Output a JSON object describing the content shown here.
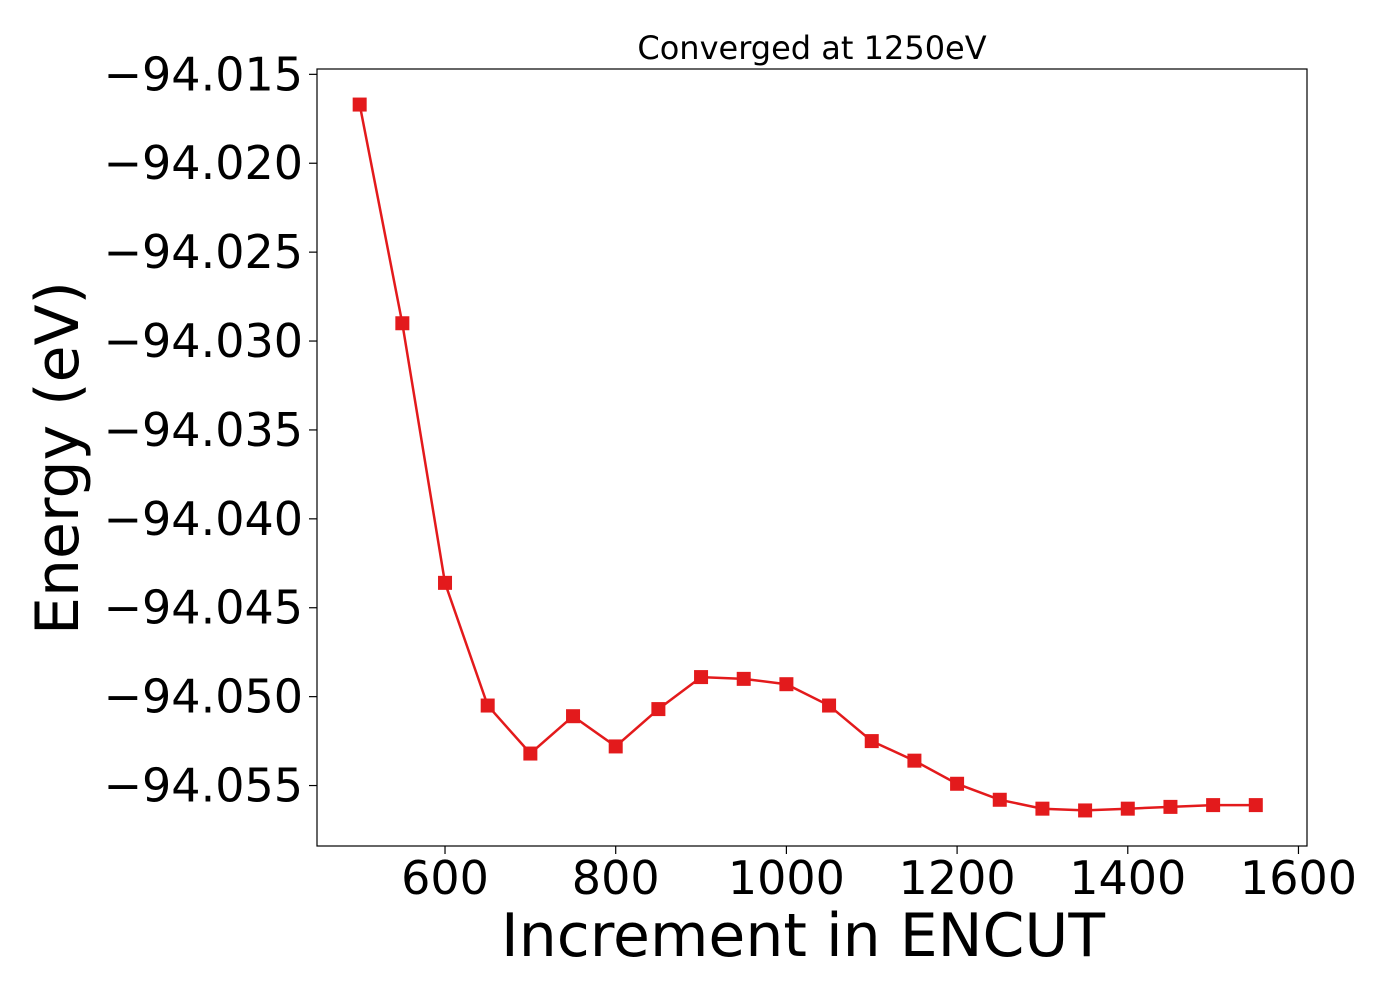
{
  "chart_data": {
    "type": "line",
    "title": "Converged at 1250eV",
    "xlabel": "Increment in ENCUT",
    "ylabel": "Energy (eV)",
    "xlim": [
      450,
      1610
    ],
    "ylim": [
      -94.0584,
      -94.0147
    ],
    "xticks": [
      600,
      800,
      1000,
      1200,
      1400,
      1600
    ],
    "xtick_labels": [
      "600",
      "800",
      "1000",
      "1200",
      "1400",
      "1600"
    ],
    "yticks": [
      -94.015,
      -94.02,
      -94.025,
      -94.03,
      -94.035,
      -94.04,
      -94.045,
      -94.05,
      -94.055
    ],
    "ytick_labels": [
      "−94.015",
      "−94.020",
      "−94.025",
      "−94.030",
      "−94.035",
      "−94.040",
      "−94.045",
      "−94.050",
      "−94.055"
    ],
    "grid": false,
    "series": [
      {
        "color": "#e31a1c",
        "marker": "square",
        "x": [
          500,
          550,
          600,
          650,
          700,
          750,
          800,
          850,
          900,
          950,
          1000,
          1050,
          1100,
          1150,
          1200,
          1250,
          1300,
          1350,
          1400,
          1450,
          1500,
          1550
        ],
        "y": [
          -94.0167,
          -94.029,
          -94.0436,
          -94.0505,
          -94.0532,
          -94.0511,
          -94.0528,
          -94.0507,
          -94.0489,
          -94.049,
          -94.0493,
          -94.0505,
          -94.0525,
          -94.0536,
          -94.0549,
          -94.0558,
          -94.0563,
          -94.0564,
          -94.0563,
          -94.0562,
          -94.0561,
          -94.0561
        ]
      }
    ]
  }
}
